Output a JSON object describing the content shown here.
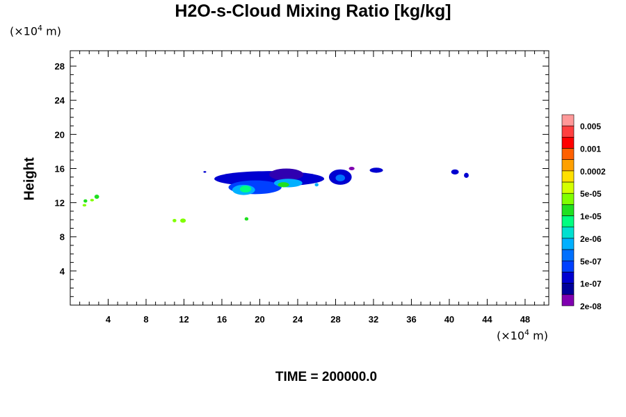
{
  "chart_data": {
    "type": "heatmap",
    "title": "H2O-s-Cloud Mixing Ratio [kg/kg]",
    "ylabel": "Height",
    "x_unit_prefix": "(×10",
    "x_unit_exp": "4",
    "x_unit_suffix": " m)",
    "y_unit_prefix": "(×10",
    "y_unit_exp": "4",
    "y_unit_suffix": " m)",
    "xlim": [
      0,
      50.5
    ],
    "ylim": [
      0,
      29.8
    ],
    "xticks": [
      "4",
      "8",
      "12",
      "16",
      "20",
      "24",
      "28",
      "32",
      "36",
      "40",
      "44",
      "48"
    ],
    "xtick_values": [
      4,
      8,
      12,
      16,
      20,
      24,
      28,
      32,
      36,
      40,
      44,
      48
    ],
    "yticks": [
      "4",
      "8",
      "12",
      "16",
      "20",
      "24",
      "28"
    ],
    "ytick_values": [
      4,
      8,
      12,
      16,
      20,
      24,
      28
    ],
    "colorbar": {
      "colors": [
        "#ff9999",
        "#ff4040",
        "#ff0000",
        "#ff6000",
        "#ffa000",
        "#ffe000",
        "#d4ff00",
        "#80ff00",
        "#20e020",
        "#00ff80",
        "#00e0d0",
        "#00b0ff",
        "#0070ff",
        "#0040ff",
        "#0000d0",
        "#00009a",
        "#8000b0"
      ],
      "labels": [
        "0.005",
        "0.001",
        "0.0002",
        "5e-05",
        "1e-05",
        "2e-06",
        "5e-07",
        "1e-07",
        "2e-08"
      ]
    },
    "cloud_regions": [
      {
        "cx": 21.0,
        "cy": 14.8,
        "rx": 5.8,
        "ry": 0.9,
        "color": "#0000d0"
      },
      {
        "cx": 19.5,
        "cy": 13.8,
        "rx": 2.8,
        "ry": 0.8,
        "color": "#0040ff"
      },
      {
        "cx": 22.8,
        "cy": 15.3,
        "rx": 1.8,
        "ry": 0.7,
        "color": "#3000b0"
      },
      {
        "cx": 18.3,
        "cy": 13.5,
        "rx": 1.2,
        "ry": 0.6,
        "color": "#00b0ff"
      },
      {
        "cx": 18.5,
        "cy": 13.6,
        "rx": 0.6,
        "ry": 0.4,
        "color": "#00ff80"
      },
      {
        "cx": 23.0,
        "cy": 14.3,
        "rx": 1.5,
        "ry": 0.5,
        "color": "#00b0ff"
      },
      {
        "cx": 22.5,
        "cy": 14.1,
        "rx": 0.6,
        "ry": 0.3,
        "color": "#20e020"
      },
      {
        "cx": 28.5,
        "cy": 15.0,
        "rx": 1.2,
        "ry": 0.9,
        "color": "#0000d0"
      },
      {
        "cx": 28.5,
        "cy": 14.9,
        "rx": 0.5,
        "ry": 0.4,
        "color": "#0070ff"
      },
      {
        "cx": 32.3,
        "cy": 15.8,
        "rx": 0.7,
        "ry": 0.3,
        "color": "#0000d0"
      },
      {
        "cx": 40.6,
        "cy": 15.6,
        "rx": 0.4,
        "ry": 0.3,
        "color": "#0000d0"
      },
      {
        "cx": 41.8,
        "cy": 15.2,
        "rx": 0.25,
        "ry": 0.3,
        "color": "#0000d0"
      },
      {
        "cx": 26.0,
        "cy": 14.1,
        "rx": 0.2,
        "ry": 0.2,
        "color": "#00b0ff"
      },
      {
        "cx": 2.8,
        "cy": 12.7,
        "rx": 0.25,
        "ry": 0.25,
        "color": "#20e020"
      },
      {
        "cx": 1.6,
        "cy": 12.2,
        "rx": 0.2,
        "ry": 0.2,
        "color": "#20e020"
      },
      {
        "cx": 2.3,
        "cy": 12.3,
        "rx": 0.2,
        "ry": 0.15,
        "color": "#80ff00"
      },
      {
        "cx": 1.5,
        "cy": 11.7,
        "rx": 0.2,
        "ry": 0.15,
        "color": "#80ff00"
      },
      {
        "cx": 11.0,
        "cy": 9.9,
        "rx": 0.2,
        "ry": 0.2,
        "color": "#80ff00"
      },
      {
        "cx": 11.9,
        "cy": 9.9,
        "rx": 0.3,
        "ry": 0.25,
        "color": "#80ff00"
      },
      {
        "cx": 18.6,
        "cy": 10.1,
        "rx": 0.2,
        "ry": 0.2,
        "color": "#20e020"
      },
      {
        "cx": 14.2,
        "cy": 15.6,
        "rx": 0.15,
        "ry": 0.1,
        "color": "#0000d0"
      },
      {
        "cx": 29.7,
        "cy": 16.0,
        "rx": 0.3,
        "ry": 0.2,
        "color": "#8000b0"
      }
    ]
  },
  "footer": {
    "time_label": "TIME = 200000.0"
  }
}
